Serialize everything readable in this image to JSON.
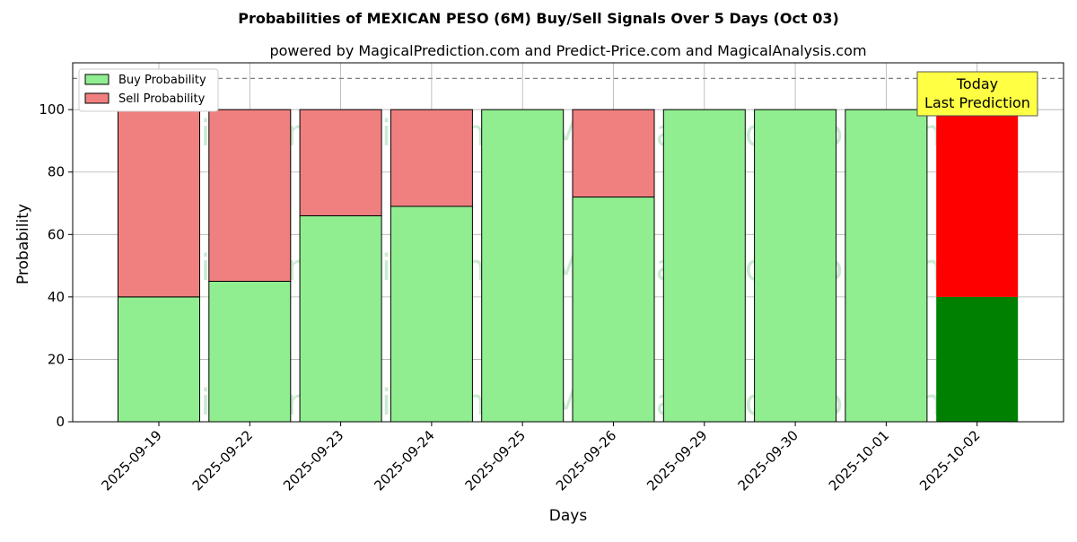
{
  "chart_data": {
    "type": "bar",
    "stacked": true,
    "title": "Probabilities of MEXICAN PESO (6M) Buy/Sell Signals Over 5 Days (Oct 03)",
    "subtitle": "powered by MagicalPrediction.com and Predict-Price.com and MagicalAnalysis.com",
    "xlabel": "Days",
    "ylabel": "Probability",
    "ylim": [
      0,
      115
    ],
    "yticks": [
      0,
      20,
      40,
      60,
      80,
      100
    ],
    "reference_line": 110,
    "grid": true,
    "legend_position": "top-left",
    "categories": [
      "2025-09-19",
      "2025-09-22",
      "2025-09-23",
      "2025-09-24",
      "2025-09-25",
      "2025-09-26",
      "2025-09-29",
      "2025-09-30",
      "2025-10-01",
      "2025-10-02"
    ],
    "series": [
      {
        "name": "Buy Probability",
        "values": [
          40,
          45,
          66,
          69,
          100,
          72,
          100,
          100,
          100,
          40
        ]
      },
      {
        "name": "Sell Probability",
        "values": [
          60,
          55,
          34,
          31,
          0,
          28,
          0,
          0,
          0,
          60
        ]
      }
    ],
    "colors": {
      "buy": "#90ee90",
      "sell": "#f08080",
      "today_buy": "#008000",
      "today_sell": "#ff0000",
      "annotation_bg": "#ffff44"
    },
    "highlight_index": 9,
    "annotation": {
      "line1": "Today",
      "line2": "Last Prediction"
    },
    "watermarks": [
      "MagicalAnalysis.com",
      "MagicalPrediction.com"
    ]
  }
}
